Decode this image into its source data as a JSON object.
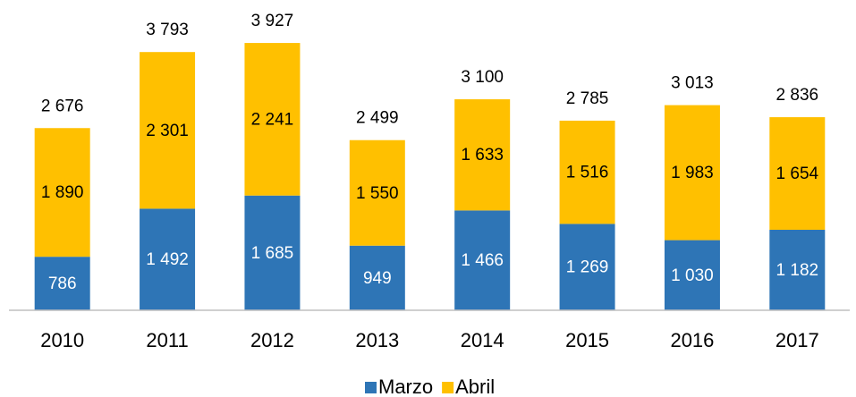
{
  "chart_data": {
    "type": "stacked-bar",
    "categories": [
      "2010",
      "2011",
      "2012",
      "2013",
      "2014",
      "2015",
      "2016",
      "2017"
    ],
    "series": [
      {
        "name": "Marzo",
        "color": "#2e75b6",
        "values": [
          786,
          1492,
          1685,
          949,
          1466,
          1269,
          1030,
          1182
        ],
        "value_labels": [
          "786",
          "1 492",
          "1 685",
          "949",
          "1 466",
          "1 269",
          "1 030",
          "1 182"
        ]
      },
      {
        "name": "Abril",
        "color": "#ffc000",
        "values": [
          1890,
          2301,
          2241,
          1550,
          1633,
          1516,
          1983,
          1654
        ],
        "value_labels": [
          "1 890",
          "2 301",
          "2 241",
          "1 550",
          "1 633",
          "1 516",
          "1 983",
          "1 654"
        ]
      }
    ],
    "totals": {
      "values": [
        2676,
        3793,
        3927,
        2499,
        3100,
        2785,
        3013,
        2836
      ],
      "value_labels": [
        "2 676",
        "3 793",
        "3 927",
        "2 499",
        "3 100",
        "2 785",
        "3 013",
        "2 836"
      ]
    },
    "legend": "bottom"
  }
}
